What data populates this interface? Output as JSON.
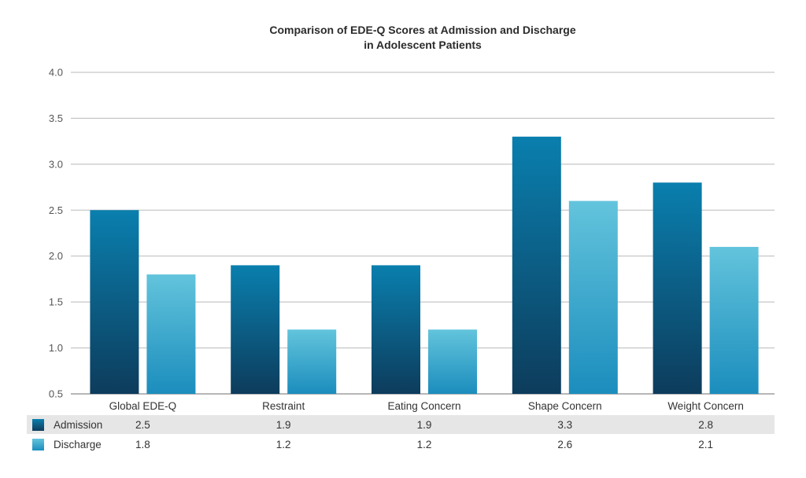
{
  "chart_data": {
    "type": "bar",
    "title_lines": [
      "Comparison of EDE-Q Scores at Admission and Discharge",
      "in Adolescent Patients"
    ],
    "categories": [
      "Global EDE-Q",
      "Restraint",
      "Eating Concern",
      "Shape Concern",
      "Weight Concern"
    ],
    "series": [
      {
        "name": "Admission",
        "values": [
          2.5,
          1.9,
          1.9,
          3.3,
          2.8
        ],
        "labels": [
          "2.5",
          "1.9",
          "1.9",
          "3.3",
          "2.8"
        ],
        "color_top": "#0a7fae",
        "color_bottom": "#0d3c5c"
      },
      {
        "name": "Discharge",
        "values": [
          1.8,
          1.2,
          1.2,
          2.6,
          2.1
        ],
        "labels": [
          "1.8",
          "1.2",
          "1.2",
          "2.6",
          "2.1"
        ],
        "color_top": "#63c4dc",
        "color_bottom": "#1b8dbd"
      }
    ],
    "ylim": [
      0.5,
      4.0
    ],
    "yticks": [
      "0.5",
      "1.0",
      "1.5",
      "2.0",
      "2.5",
      "3.0",
      "3.5",
      "4.0"
    ],
    "grid": true,
    "legend": "data table below chart"
  }
}
